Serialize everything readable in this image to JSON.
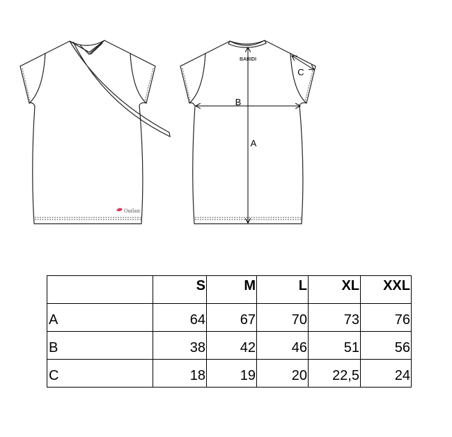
{
  "drawing": {
    "front_logo": "Outlast",
    "back_logo": "BARIDI",
    "labels": {
      "a": "A",
      "b": "B",
      "c": "C"
    },
    "logo_color": "#d23c5a"
  },
  "size_table": {
    "columns": [
      "",
      "S",
      "M",
      "L",
      "XL",
      "XXL"
    ],
    "rows": [
      {
        "label": "A",
        "values": [
          "64",
          "67",
          "70",
          "73",
          "76"
        ]
      },
      {
        "label": "B",
        "values": [
          "38",
          "42",
          "46",
          "51",
          "56"
        ]
      },
      {
        "label": "C",
        "values": [
          "18",
          "19",
          "20",
          "22,5",
          "24"
        ]
      }
    ]
  }
}
